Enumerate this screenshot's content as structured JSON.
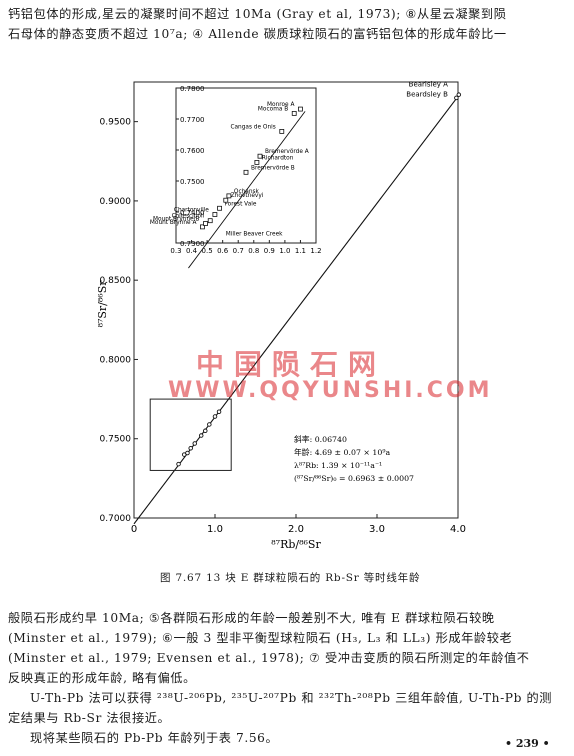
{
  "text_top": [
    "钙铝包体的形成,星云的凝聚时间不超过 10Ma (Gray et al, 1973); ⑧从星云凝聚到陨",
    "石母体的静态变质不超过 10⁷a; ④ Allende 碳质球粒陨石的富钙铝包体的形成年龄比一"
  ],
  "text_bottom": [
    "般陨石形成约早 10Ma; ⑤各群陨石形成的年龄一般差别不大, 唯有 E 群球粒陨石较晚",
    "(Minster et al., 1979); ⑥一般 3 型非平衡型球粒陨石 (H₃, L₃ 和 LL₃) 形成年龄较老",
    "(Minster et al., 1979; Evensen et al., 1978); ⑦ 受冲击变质的陨石所测定的年龄值不",
    "反映真正的形成年龄, 略有偏低。",
    "U-Th-Pb 法可以获得 ²³⁸U-²⁰⁶Pb, ²³⁵U-²⁰⁷Pb 和 ²³²Th-²⁰⁸Pb 三组年龄值, U-Th-Pb 的测",
    "定结果与 Rb-Sr 法很接近。",
    "现将某些陨石的 Pb-Pb 年龄列于表 7.56。"
  ],
  "caption": "图 7.67   13 块 E 群球粒陨石的 Rb-Sr 等时线年龄",
  "watermark_cn": "中国陨石网",
  "watermark_url": "WWW.QQYUNSHI.COM",
  "page_number": "• 239 •",
  "chart_data": {
    "type": "scatter",
    "xlabel": "⁸⁷Rb/⁸⁶Sr",
    "ylabel": "⁸⁷Sr/⁸⁶Sr",
    "xlim": [
      0,
      4.0
    ],
    "ylim": [
      0.7,
      0.975
    ],
    "x_ticks": [
      "0",
      "1.0",
      "2.0",
      "3.0",
      "4.0"
    ],
    "y_ticks": [
      "0.7000",
      "0.7500",
      "0.8000",
      "0.8500",
      "0.9000",
      "0.9500"
    ],
    "isochron": {
      "x": [
        0,
        4.0
      ],
      "y": [
        0.6963,
        0.9659
      ]
    },
    "main_points": [
      {
        "x": 0.55,
        "y": 0.734
      },
      {
        "x": 0.62,
        "y": 0.74
      },
      {
        "x": 0.66,
        "y": 0.741
      },
      {
        "x": 0.7,
        "y": 0.744
      },
      {
        "x": 0.75,
        "y": 0.747
      },
      {
        "x": 0.83,
        "y": 0.752
      },
      {
        "x": 0.88,
        "y": 0.755
      },
      {
        "x": 0.93,
        "y": 0.759
      },
      {
        "x": 1.0,
        "y": 0.764
      },
      {
        "x": 1.05,
        "y": 0.767
      },
      {
        "x": 3.98,
        "y": 0.965
      },
      {
        "x": 4.01,
        "y": 0.967
      }
    ],
    "main_labels": [
      "Bearisley A",
      "Beardsley B"
    ],
    "inset_box": {
      "x": [
        0.2,
        1.2
      ],
      "y": [
        0.73,
        0.775
      ]
    },
    "inset": {
      "xlim": [
        0.3,
        1.2
      ],
      "ylim": [
        0.73,
        0.78
      ],
      "x_ticks": [
        "0.3",
        "0.4",
        "0.5",
        "0.6",
        "0.7",
        "0.8",
        "0.9",
        "1.0",
        "1.1",
        "1.2"
      ],
      "y_ticks": [
        "0.7300",
        "0.7400",
        "0.7500",
        "0.7600",
        "0.7700",
        "0.7800"
      ],
      "points": [
        {
          "x": 0.47,
          "y": 0.7352,
          "label": "Mount Brynne A"
        },
        {
          "x": 0.49,
          "y": 0.7363,
          "label": "Mount Brynne B"
        },
        {
          "x": 0.52,
          "y": 0.7372,
          "label": "Collescipoli"
        },
        {
          "x": 0.55,
          "y": 0.7392,
          "label": "Chartonville"
        },
        {
          "x": 0.58,
          "y": 0.7412,
          "label": "Forest Vale"
        },
        {
          "x": 0.62,
          "y": 0.7438,
          "label": "Zhovtnevyi"
        },
        {
          "x": 0.64,
          "y": 0.7452,
          "label": "Ochansk"
        },
        {
          "x": 0.75,
          "y": 0.7528,
          "label": "Bremervörde B"
        },
        {
          "x": 0.82,
          "y": 0.756,
          "label": "Richardton"
        },
        {
          "x": 0.84,
          "y": 0.758,
          "label": "Bremervörde A"
        },
        {
          "x": 0.98,
          "y": 0.766,
          "label": "Cangas de Onis"
        },
        {
          "x": 1.06,
          "y": 0.7718,
          "label": "Mocoma B"
        },
        {
          "x": 1.1,
          "y": 0.7732,
          "label": "Monroe A"
        }
      ],
      "extra_label": "Miller  Beaver  Creek"
    },
    "annotation": [
      "斜率: 0.06740",
      "年龄: 4.69 ± 0.07 × 10⁹a",
      "λ⁸⁷Rb: 1.39 × 10⁻¹¹a⁻¹",
      "(⁸⁷Sr/⁸⁶Sr)₀ = 0.6963 ± 0.0007"
    ]
  }
}
